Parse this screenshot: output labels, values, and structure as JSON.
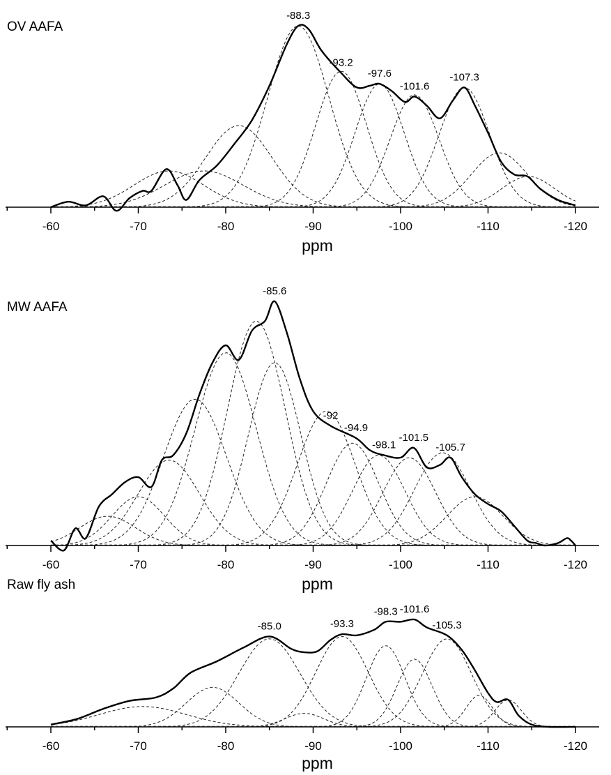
{
  "chart_data": [
    {
      "type": "line",
      "title": "OV AAFA",
      "xlabel": "ppm",
      "xlim": [
        -60,
        -120
      ],
      "xticks": [
        -60,
        -70,
        -80,
        -90,
        -100,
        -110,
        -120
      ],
      "ylim": [
        0,
        1
      ],
      "annotations": [
        {
          "text": "-88.3",
          "x": -88.3
        },
        {
          "text": "-93.2",
          "x": -93.2
        },
        {
          "text": "-97.6",
          "x": -97.6
        },
        {
          "text": "-101.6",
          "x": -101.6
        },
        {
          "text": "-107.3",
          "x": -107.3
        }
      ],
      "components": [
        {
          "center": -73.5,
          "height": 0.2,
          "width": 4.0
        },
        {
          "center": -77.5,
          "height": 0.2,
          "width": 4.5
        },
        {
          "center": -81.5,
          "height": 0.45,
          "width": 3.8
        },
        {
          "center": -88.3,
          "height": 1.0,
          "width": 3.5
        },
        {
          "center": -93.2,
          "height": 0.75,
          "width": 2.9
        },
        {
          "center": -97.6,
          "height": 0.68,
          "width": 2.8
        },
        {
          "center": -101.6,
          "height": 0.62,
          "width": 2.8
        },
        {
          "center": -107.3,
          "height": 0.66,
          "width": 2.9
        },
        {
          "center": -111.3,
          "height": 0.3,
          "width": 3.2
        },
        {
          "center": -114.6,
          "height": 0.17,
          "width": 3.0
        }
      ],
      "series": [
        {
          "x": [
            -60,
            -62,
            -64,
            -66,
            -67.5,
            -69,
            -70.5,
            -71.5,
            -73.2,
            -74.5,
            -75.5,
            -77,
            -79,
            -81,
            -83,
            -85,
            -87,
            -88.3,
            -89.5,
            -91,
            -93.2,
            -95,
            -96.5,
            -97.6,
            -99,
            -100.5,
            -101.6,
            -103,
            -104.5,
            -106,
            -107.3,
            -108.5,
            -110,
            -111.5,
            -113,
            -114.5,
            -116,
            -118,
            -120
          ],
          "y": [
            0.0,
            0.03,
            0.01,
            0.06,
            -0.02,
            0.05,
            0.09,
            0.09,
            0.21,
            0.12,
            0.04,
            0.15,
            0.23,
            0.35,
            0.48,
            0.67,
            0.9,
            1.0,
            0.98,
            0.86,
            0.74,
            0.66,
            0.67,
            0.68,
            0.64,
            0.58,
            0.61,
            0.56,
            0.49,
            0.59,
            0.66,
            0.56,
            0.41,
            0.25,
            0.18,
            0.17,
            0.1,
            0.04,
            0.01
          ]
        }
      ]
    },
    {
      "type": "line",
      "title": "MW AAFA",
      "xlabel": "ppm",
      "xlim": [
        -60,
        -120
      ],
      "xticks": [
        -60,
        -70,
        -80,
        -90,
        -100,
        -110,
        -120
      ],
      "ylim": [
        0,
        1
      ],
      "annotations": [
        {
          "text": "-85.6",
          "x": -85.6
        },
        {
          "text": "-92",
          "x": -92
        },
        {
          "text": "-94.9",
          "x": -94.9
        },
        {
          "text": "-98.1",
          "x": -98.1
        },
        {
          "text": "-101.5",
          "x": -101.5
        },
        {
          "text": "-105.7",
          "x": -105.7
        }
      ],
      "components": [
        {
          "center": -66.5,
          "height": 0.12,
          "width": 3.2
        },
        {
          "center": -70.0,
          "height": 0.2,
          "width": 3.0
        },
        {
          "center": -73.5,
          "height": 0.35,
          "width": 3.5
        },
        {
          "center": -76.5,
          "height": 0.6,
          "width": 3.6
        },
        {
          "center": -80.0,
          "height": 0.79,
          "width": 3.5
        },
        {
          "center": -83.5,
          "height": 0.92,
          "width": 3.3
        },
        {
          "center": -85.6,
          "height": 0.75,
          "width": 3.0
        },
        {
          "center": -91.5,
          "height": 0.55,
          "width": 3.3
        },
        {
          "center": -94.5,
          "height": 0.42,
          "width": 3.0
        },
        {
          "center": -97.5,
          "height": 0.37,
          "width": 3.0
        },
        {
          "center": -101.0,
          "height": 0.36,
          "width": 3.0
        },
        {
          "center": -104.8,
          "height": 0.38,
          "width": 3.2
        },
        {
          "center": -108.5,
          "height": 0.2,
          "width": 3.2
        }
      ],
      "series": [
        {
          "x": [
            -60,
            -61.5,
            -62.8,
            -64,
            -65.5,
            -67,
            -68.5,
            -70,
            -71.5,
            -72.7,
            -74,
            -75.5,
            -77,
            -78.5,
            -80,
            -81.5,
            -83,
            -84.5,
            -85.6,
            -87,
            -88.5,
            -90,
            -92,
            -94.9,
            -96.5,
            -98.1,
            -100,
            -101.5,
            -103,
            -104.5,
            -105.7,
            -107,
            -108.5,
            -110,
            -111.5,
            -113,
            -114.5,
            -115.5,
            -116.5,
            -118,
            -119,
            -119.5,
            -120
          ],
          "y": [
            0.02,
            -0.02,
            0.07,
            0.03,
            0.16,
            0.21,
            0.26,
            0.28,
            0.24,
            0.35,
            0.37,
            0.46,
            0.62,
            0.75,
            0.82,
            0.76,
            0.88,
            0.92,
            1.0,
            0.87,
            0.68,
            0.55,
            0.49,
            0.44,
            0.39,
            0.37,
            0.36,
            0.4,
            0.32,
            0.33,
            0.36,
            0.28,
            0.21,
            0.17,
            0.14,
            0.08,
            0.02,
            0.01,
            0.0,
            0.01,
            0.03,
            0.02,
            0.0
          ]
        }
      ]
    },
    {
      "type": "line",
      "title": "Raw fly ash",
      "xlabel": "ppm",
      "xlim": [
        -60,
        -120
      ],
      "xticks": [
        -60,
        -70,
        -80,
        -90,
        -100,
        -110,
        -120
      ],
      "ylim": [
        0,
        1
      ],
      "annotations": [
        {
          "text": "-85.0",
          "x": -85.0
        },
        {
          "text": "-93.3",
          "x": -93.3
        },
        {
          "text": "-98.3",
          "x": -98.3
        },
        {
          "text": "-101.6",
          "x": -101.6
        },
        {
          "text": "-105.3",
          "x": -105.3
        }
      ],
      "components": [
        {
          "center": -70.5,
          "height": 0.18,
          "width": 5.0
        },
        {
          "center": -78.5,
          "height": 0.35,
          "width": 3.0
        },
        {
          "center": -85.0,
          "height": 0.78,
          "width": 3.5
        },
        {
          "center": -89.0,
          "height": 0.12,
          "width": 2.2
        },
        {
          "center": -93.3,
          "height": 0.8,
          "width": 3.0
        },
        {
          "center": -98.3,
          "height": 0.72,
          "width": 2.2
        },
        {
          "center": -101.6,
          "height": 0.6,
          "width": 2.0
        },
        {
          "center": -105.3,
          "height": 0.78,
          "width": 2.8
        },
        {
          "center": -109.0,
          "height": 0.28,
          "width": 1.5
        },
        {
          "center": -112.3,
          "height": 0.24,
          "width": 1.5
        }
      ],
      "series": [
        {
          "x": [
            -60,
            -63,
            -66,
            -69,
            -72,
            -74,
            -76,
            -79,
            -82,
            -85,
            -87.5,
            -89,
            -90.5,
            -92,
            -93.3,
            -95,
            -97,
            -98.3,
            -100,
            -101.6,
            -103,
            -105.3,
            -107,
            -108.5,
            -110,
            -111,
            -112.3,
            -113.5,
            -115,
            -117,
            -120
          ],
          "y": [
            0.02,
            0.07,
            0.16,
            0.23,
            0.26,
            0.34,
            0.48,
            0.58,
            0.7,
            0.8,
            0.69,
            0.66,
            0.67,
            0.77,
            0.82,
            0.81,
            0.86,
            0.93,
            0.93,
            0.95,
            0.88,
            0.81,
            0.68,
            0.5,
            0.3,
            0.22,
            0.24,
            0.1,
            0.02,
            0.0,
            0.0
          ]
        }
      ]
    }
  ]
}
